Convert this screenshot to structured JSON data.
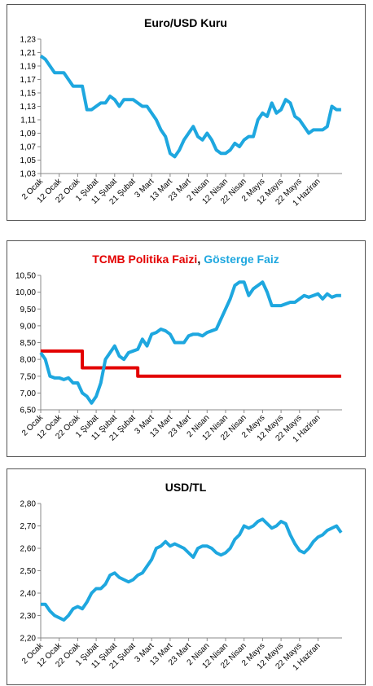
{
  "chart_data": [
    {
      "type": "line",
      "title": "Euro/USD Kuru",
      "categories": [
        "2 Ocak",
        null,
        null,
        null,
        "12 Ocak",
        null,
        null,
        null,
        "22 Ocak",
        null,
        null,
        null,
        "1 Şubat",
        null,
        null,
        null,
        "11 Şubat",
        null,
        null,
        null,
        "21 Şubat",
        null,
        null,
        null,
        "3 Mart",
        null,
        null,
        null,
        "13 Mart",
        null,
        null,
        null,
        "23 Mart",
        null,
        null,
        null,
        "2 Nisan",
        null,
        null,
        null,
        "12 Nisan",
        null,
        null,
        null,
        "22 Nisan",
        null,
        null,
        null,
        "2 Mayıs",
        null,
        null,
        null,
        "12 Mayıs",
        null,
        null,
        null,
        "22 Mayıs",
        null,
        null,
        null,
        "1 Haziran",
        null,
        null,
        null,
        null,
        null
      ],
      "series": [
        {
          "name": "Euro/USD",
          "color": "#1ea7df",
          "values": [
            1.205,
            1.2,
            1.19,
            1.18,
            1.18,
            1.18,
            1.17,
            1.16,
            1.16,
            1.16,
            1.125,
            1.125,
            1.13,
            1.135,
            1.135,
            1.145,
            1.14,
            1.13,
            1.14,
            1.14,
            1.14,
            1.135,
            1.13,
            1.13,
            1.12,
            1.11,
            1.095,
            1.085,
            1.06,
            1.055,
            1.065,
            1.08,
            1.09,
            1.1,
            1.085,
            1.08,
            1.09,
            1.08,
            1.065,
            1.06,
            1.06,
            1.065,
            1.075,
            1.07,
            1.08,
            1.085,
            1.085,
            1.11,
            1.12,
            1.115,
            1.135,
            1.12,
            1.125,
            1.14,
            1.135,
            1.115,
            1.11,
            1.1,
            1.09,
            1.095,
            1.095,
            1.095,
            1.1,
            1.13,
            1.125,
            1.125
          ]
        }
      ],
      "ylim": [
        1.03,
        1.23
      ],
      "yticks": [
        {
          "value": 1.03,
          "label": "1,03"
        },
        {
          "value": 1.05,
          "label": "1,05"
        },
        {
          "value": 1.07,
          "label": "1,07"
        },
        {
          "value": 1.09,
          "label": "1,09"
        },
        {
          "value": 1.11,
          "label": "1,11"
        },
        {
          "value": 1.13,
          "label": "1,13"
        },
        {
          "value": 1.15,
          "label": "1,15"
        },
        {
          "value": 1.17,
          "label": "1,17"
        },
        {
          "value": 1.19,
          "label": "1,19"
        },
        {
          "value": 1.21,
          "label": "1,21"
        },
        {
          "value": 1.23,
          "label": "1,23"
        }
      ]
    },
    {
      "type": "line",
      "title_separator": ",",
      "categories": [
        "2 Ocak",
        null,
        null,
        null,
        "12 Ocak",
        null,
        null,
        null,
        "22 Ocak",
        null,
        null,
        null,
        "1 Şubat",
        null,
        null,
        null,
        "11 Şubat",
        null,
        null,
        null,
        "21 Şubat",
        null,
        null,
        null,
        "3 Mart",
        null,
        null,
        null,
        "13 Mart",
        null,
        null,
        null,
        "23 Mart",
        null,
        null,
        null,
        "2 Nisan",
        null,
        null,
        null,
        "12 Nisan",
        null,
        null,
        null,
        "22 Nisan",
        null,
        null,
        null,
        "2 Mayıs",
        null,
        null,
        null,
        "12 Mayıs",
        null,
        null,
        null,
        "22 Mayıs",
        null,
        null,
        null,
        "1 Haziran",
        null,
        null,
        null,
        null,
        null
      ],
      "series": [
        {
          "name": "TCMB Politika Faizi",
          "color": "#e30000",
          "step": true,
          "values": [
            8.25,
            8.25,
            8.25,
            8.25,
            8.25,
            8.25,
            8.25,
            8.25,
            8.25,
            7.75,
            7.75,
            7.75,
            7.75,
            7.75,
            7.75,
            7.75,
            7.75,
            7.75,
            7.75,
            7.75,
            7.75,
            7.5,
            7.5,
            7.5,
            7.5,
            7.5,
            7.5,
            7.5,
            7.5,
            7.5,
            7.5,
            7.5,
            7.5,
            7.5,
            7.5,
            7.5,
            7.5,
            7.5,
            7.5,
            7.5,
            7.5,
            7.5,
            7.5,
            7.5,
            7.5,
            7.5,
            7.5,
            7.5,
            7.5,
            7.5,
            7.5,
            7.5,
            7.5,
            7.5,
            7.5,
            7.5,
            7.5,
            7.5,
            7.5,
            7.5,
            7.5,
            7.5,
            7.5,
            7.5,
            7.5,
            7.5
          ]
        },
        {
          "name": "Gösterge Faiz",
          "color": "#1ea7df",
          "values": [
            8.2,
            8.0,
            7.5,
            7.45,
            7.45,
            7.4,
            7.45,
            7.3,
            7.3,
            7.0,
            6.9,
            6.7,
            6.9,
            7.3,
            8.0,
            8.2,
            8.4,
            8.1,
            8.0,
            8.2,
            8.25,
            8.3,
            8.6,
            8.4,
            8.75,
            8.8,
            8.9,
            8.85,
            8.75,
            8.5,
            8.5,
            8.5,
            8.7,
            8.75,
            8.75,
            8.7,
            8.8,
            8.85,
            8.9,
            9.2,
            9.5,
            9.8,
            10.2,
            10.3,
            10.3,
            9.9,
            10.1,
            10.2,
            10.3,
            10.0,
            9.6,
            9.6,
            9.6,
            9.65,
            9.7,
            9.7,
            9.8,
            9.9,
            9.85,
            9.9,
            9.95,
            9.8,
            9.95,
            9.85,
            9.9,
            9.9
          ]
        }
      ],
      "ylim": [
        6.5,
        10.5
      ],
      "yticks": [
        {
          "value": 6.5,
          "label": "6,50"
        },
        {
          "value": 7,
          "label": "7,00"
        },
        {
          "value": 7.5,
          "label": "7,50"
        },
        {
          "value": 8,
          "label": "8,00"
        },
        {
          "value": 8.5,
          "label": "8,50"
        },
        {
          "value": 9,
          "label": "9,00"
        },
        {
          "value": 9.5,
          "label": "9,50"
        },
        {
          "value": 10,
          "label": "10,00"
        },
        {
          "value": 10.5,
          "label": "10,50"
        }
      ]
    },
    {
      "type": "line",
      "title": "USD/TL",
      "categories": [
        "2 Ocak",
        null,
        null,
        null,
        "12 Ocak",
        null,
        null,
        null,
        "22 Ocak",
        null,
        null,
        null,
        "1 Şubat",
        null,
        null,
        null,
        "11 Şubat",
        null,
        null,
        null,
        "21 Şubat",
        null,
        null,
        null,
        "3 Mart",
        null,
        null,
        null,
        "13 Mart",
        null,
        null,
        null,
        "23 Mart",
        null,
        null,
        null,
        "2 Nisan",
        null,
        null,
        null,
        "12 Nisan",
        null,
        null,
        null,
        "22 Nisan",
        null,
        null,
        null,
        "2 Mayıs",
        null,
        null,
        null,
        "12 Mayıs",
        null,
        null,
        null,
        "22 Mayıs",
        null,
        null,
        null,
        "1 Haziran",
        null,
        null,
        null,
        null,
        null
      ],
      "series": [
        {
          "name": "USD/TL",
          "color": "#1ea7df",
          "values": [
            2.35,
            2.35,
            2.32,
            2.3,
            2.29,
            2.28,
            2.3,
            2.33,
            2.34,
            2.33,
            2.36,
            2.4,
            2.42,
            2.42,
            2.44,
            2.48,
            2.49,
            2.47,
            2.46,
            2.45,
            2.46,
            2.48,
            2.49,
            2.52,
            2.55,
            2.6,
            2.61,
            2.63,
            2.61,
            2.62,
            2.61,
            2.6,
            2.58,
            2.56,
            2.6,
            2.61,
            2.61,
            2.6,
            2.58,
            2.57,
            2.58,
            2.6,
            2.64,
            2.66,
            2.7,
            2.69,
            2.7,
            2.72,
            2.73,
            2.71,
            2.69,
            2.7,
            2.72,
            2.71,
            2.66,
            2.62,
            2.59,
            2.58,
            2.6,
            2.63,
            2.65,
            2.66,
            2.68,
            2.69,
            2.7,
            2.67
          ]
        }
      ],
      "ylim": [
        2.2,
        2.8
      ],
      "yticks": [
        {
          "value": 2.2,
          "label": "2,20"
        },
        {
          "value": 2.3,
          "label": "2,30"
        },
        {
          "value": 2.4,
          "label": "2,40"
        },
        {
          "value": 2.5,
          "label": "2,50"
        },
        {
          "value": 2.6,
          "label": "2,60"
        },
        {
          "value": 2.7,
          "label": "2,70"
        },
        {
          "value": 2.8,
          "label": "2,80"
        }
      ]
    }
  ]
}
